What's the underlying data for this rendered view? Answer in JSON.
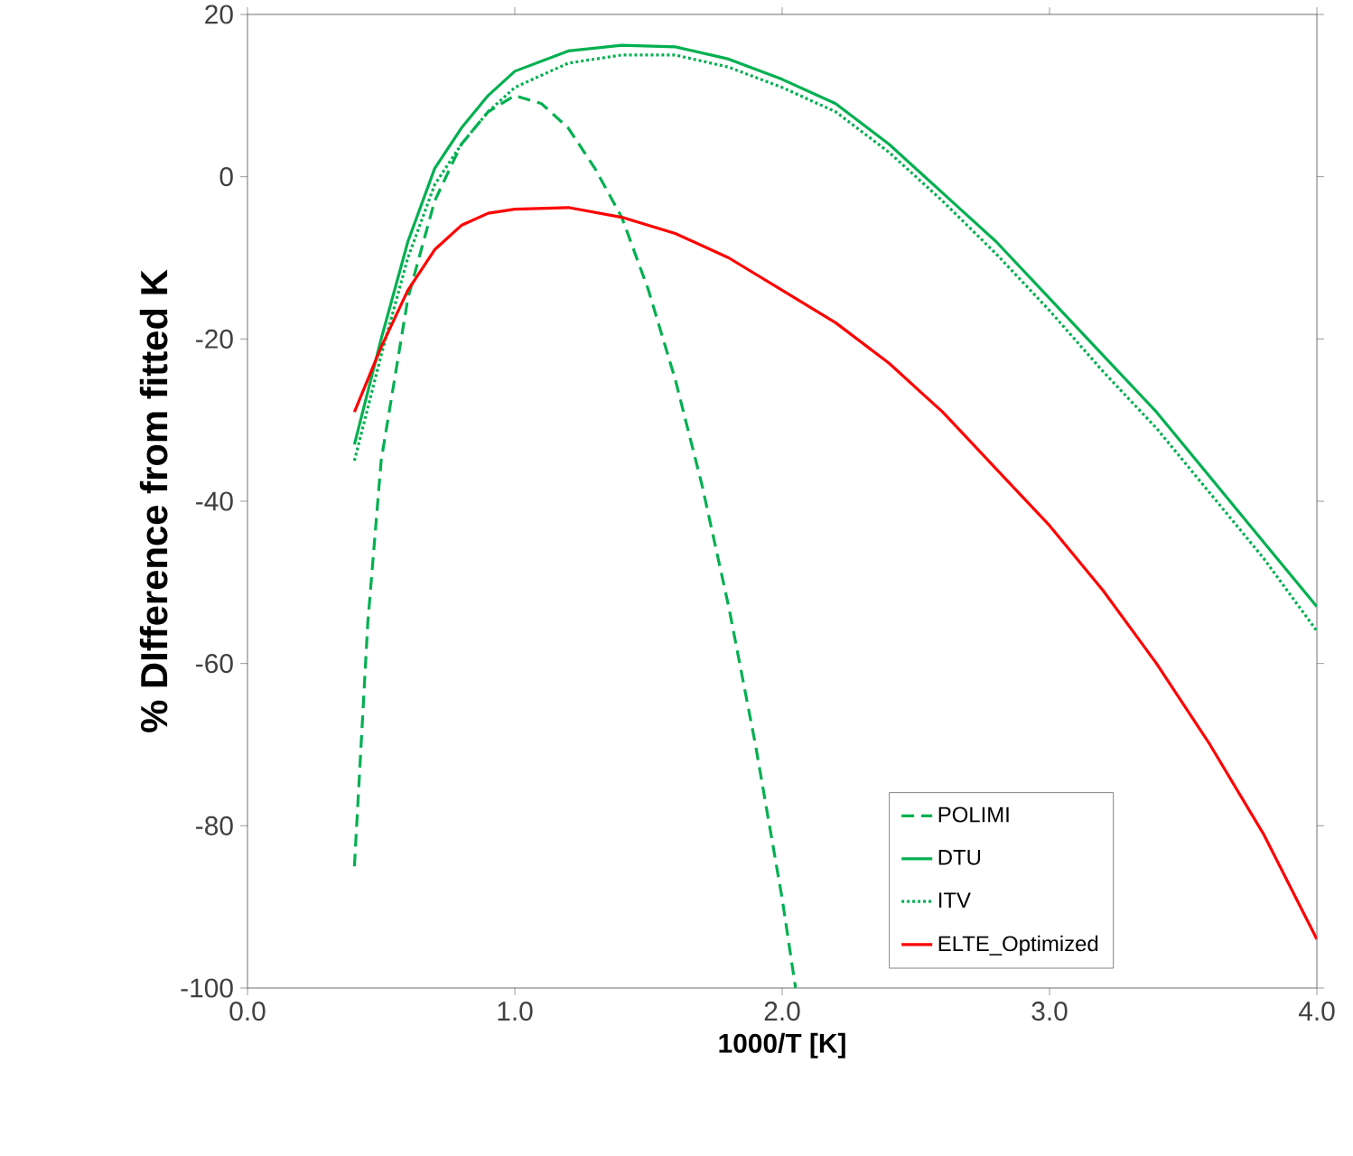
{
  "chart_data": {
    "type": "line",
    "xlabel": "1000/T [K]",
    "ylabel": "% DIfference from fitted K",
    "xlim": [
      0,
      4
    ],
    "ylim": [
      -100,
      20
    ],
    "xticks": [
      {
        "value": 0,
        "label": "0.0"
      },
      {
        "value": 1,
        "label": "1.0"
      },
      {
        "value": 2,
        "label": "2.0"
      },
      {
        "value": 3,
        "label": "3.0"
      },
      {
        "value": 4,
        "label": "4.0"
      }
    ],
    "yticks": [
      -100,
      -80,
      -60,
      -40,
      -20,
      0,
      20
    ],
    "grid": false,
    "legend": "bottom right",
    "marker": "none",
    "series": [
      {
        "name": "POLIMI",
        "color": "#00b050",
        "line_style": "dashed",
        "x": [
          0.4,
          0.45,
          0.5,
          0.6,
          0.7,
          0.8,
          0.9,
          1.0,
          1.1,
          1.2,
          1.3,
          1.4,
          1.5,
          1.6,
          1.7,
          1.8,
          1.9,
          2.0,
          2.05
        ],
        "values": [
          -85,
          -55,
          -35,
          -15,
          -3,
          4,
          8,
          10,
          9,
          6,
          1,
          -5,
          -14,
          -25,
          -38,
          -53,
          -70,
          -89,
          -100
        ]
      },
      {
        "name": "DTU",
        "color": "#00b050",
        "line_style": "solid",
        "x": [
          0.4,
          0.5,
          0.6,
          0.7,
          0.8,
          0.9,
          1.0,
          1.2,
          1.4,
          1.6,
          1.8,
          2.0,
          2.2,
          2.4,
          2.6,
          2.8,
          3.0,
          3.2,
          3.4,
          3.6,
          3.8,
          4.0
        ],
        "values": [
          -33,
          -20,
          -8,
          1,
          6,
          10,
          13,
          15.5,
          16.2,
          16,
          14.5,
          12,
          9,
          4,
          -2,
          -8,
          -15,
          -22,
          -29,
          -37,
          -45,
          -53
        ]
      },
      {
        "name": "ITV",
        "color": "#00b050",
        "line_style": "dotted",
        "x": [
          0.4,
          0.5,
          0.6,
          0.7,
          0.8,
          0.9,
          1.0,
          1.2,
          1.4,
          1.6,
          1.8,
          2.0,
          2.2,
          2.4,
          2.6,
          2.8,
          3.0,
          3.2,
          3.4,
          3.6,
          3.8,
          4.0
        ],
        "values": [
          -35,
          -22,
          -10,
          -1,
          4,
          8,
          11,
          14,
          15,
          15,
          13.5,
          11,
          8,
          3,
          -3,
          -9.5,
          -16.5,
          -24,
          -31,
          -39,
          -47,
          -56
        ]
      },
      {
        "name": "ELTE_Optimized",
        "color": "#ff0000",
        "line_style": "solid",
        "x": [
          0.4,
          0.5,
          0.6,
          0.7,
          0.8,
          0.9,
          1.0,
          1.2,
          1.4,
          1.6,
          1.8,
          2.0,
          2.2,
          2.4,
          2.6,
          2.8,
          3.0,
          3.2,
          3.4,
          3.6,
          3.8,
          4.0
        ],
        "values": [
          -29,
          -21,
          -14,
          -9,
          -6,
          -4.5,
          -4,
          -3.8,
          -5,
          -7,
          -10,
          -14,
          -18,
          -23,
          -29,
          -36,
          -43,
          -51,
          -60,
          -70,
          -81,
          -94
        ]
      }
    ]
  }
}
